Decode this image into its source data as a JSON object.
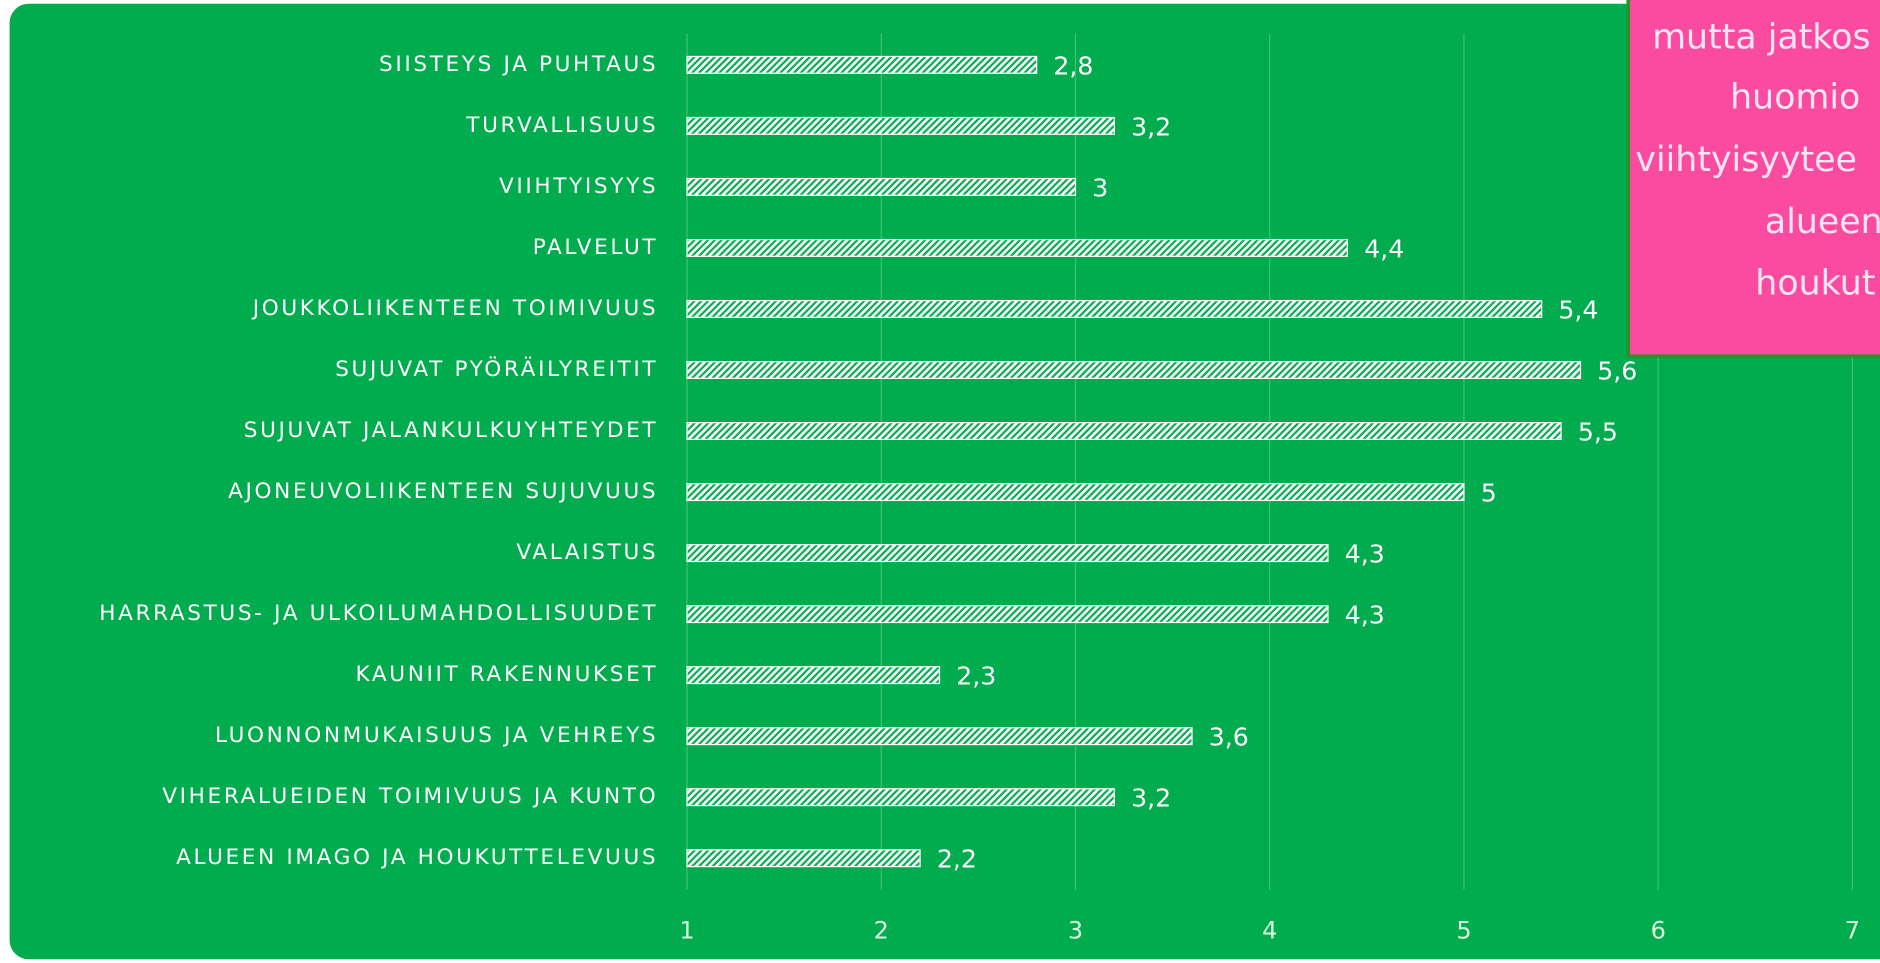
{
  "chart_data": {
    "type": "bar",
    "orientation": "horizontal",
    "categories": [
      "SIISTEYS JA PUHTAUS",
      "TURVALLISUUS",
      "VIIHTYISYYS",
      "PALVELUT",
      "JOUKKOLIIKENTEEN TOIMIVUUS",
      "SUJUVAT PYÖRÄILYREITIT",
      "SUJUVAT JALANKULKUYHTEYDET",
      "AJONEUVOLIIKENTEEN SUJUVUUS",
      "VALAISTUS",
      "HARRASTUS- JA ULKOILUMAHDOLLISUUDET",
      "KAUNIIT RAKENNUKSET",
      "LUONNONMUKAISUUS JA VEHREYS",
      "VIHERALUEIDEN TOIMIVUUS JA KUNTO",
      "ALUEEN IMAGO JA HOUKUTTELEVUUS"
    ],
    "values": [
      2.8,
      3.2,
      3,
      4.4,
      5.4,
      5.6,
      5.5,
      5,
      4.3,
      4.3,
      2.3,
      3.6,
      3.2,
      2.2
    ],
    "value_labels": [
      "2,8",
      "3,2",
      "3",
      "4,4",
      "5,4",
      "5,6",
      "5,5",
      "5",
      "4,3",
      "4,3",
      "2,3",
      "3,6",
      "3,2",
      "2,2"
    ],
    "color": "#ffffff",
    "xlim": [
      1,
      7
    ],
    "xticks": [
      1,
      2,
      3,
      4,
      5,
      6,
      7
    ],
    "grid": true,
    "annotation": [
      "mutta jatkos",
      "huomio",
      "viihtyisyytee",
      "alueen",
      "houkut"
    ]
  }
}
